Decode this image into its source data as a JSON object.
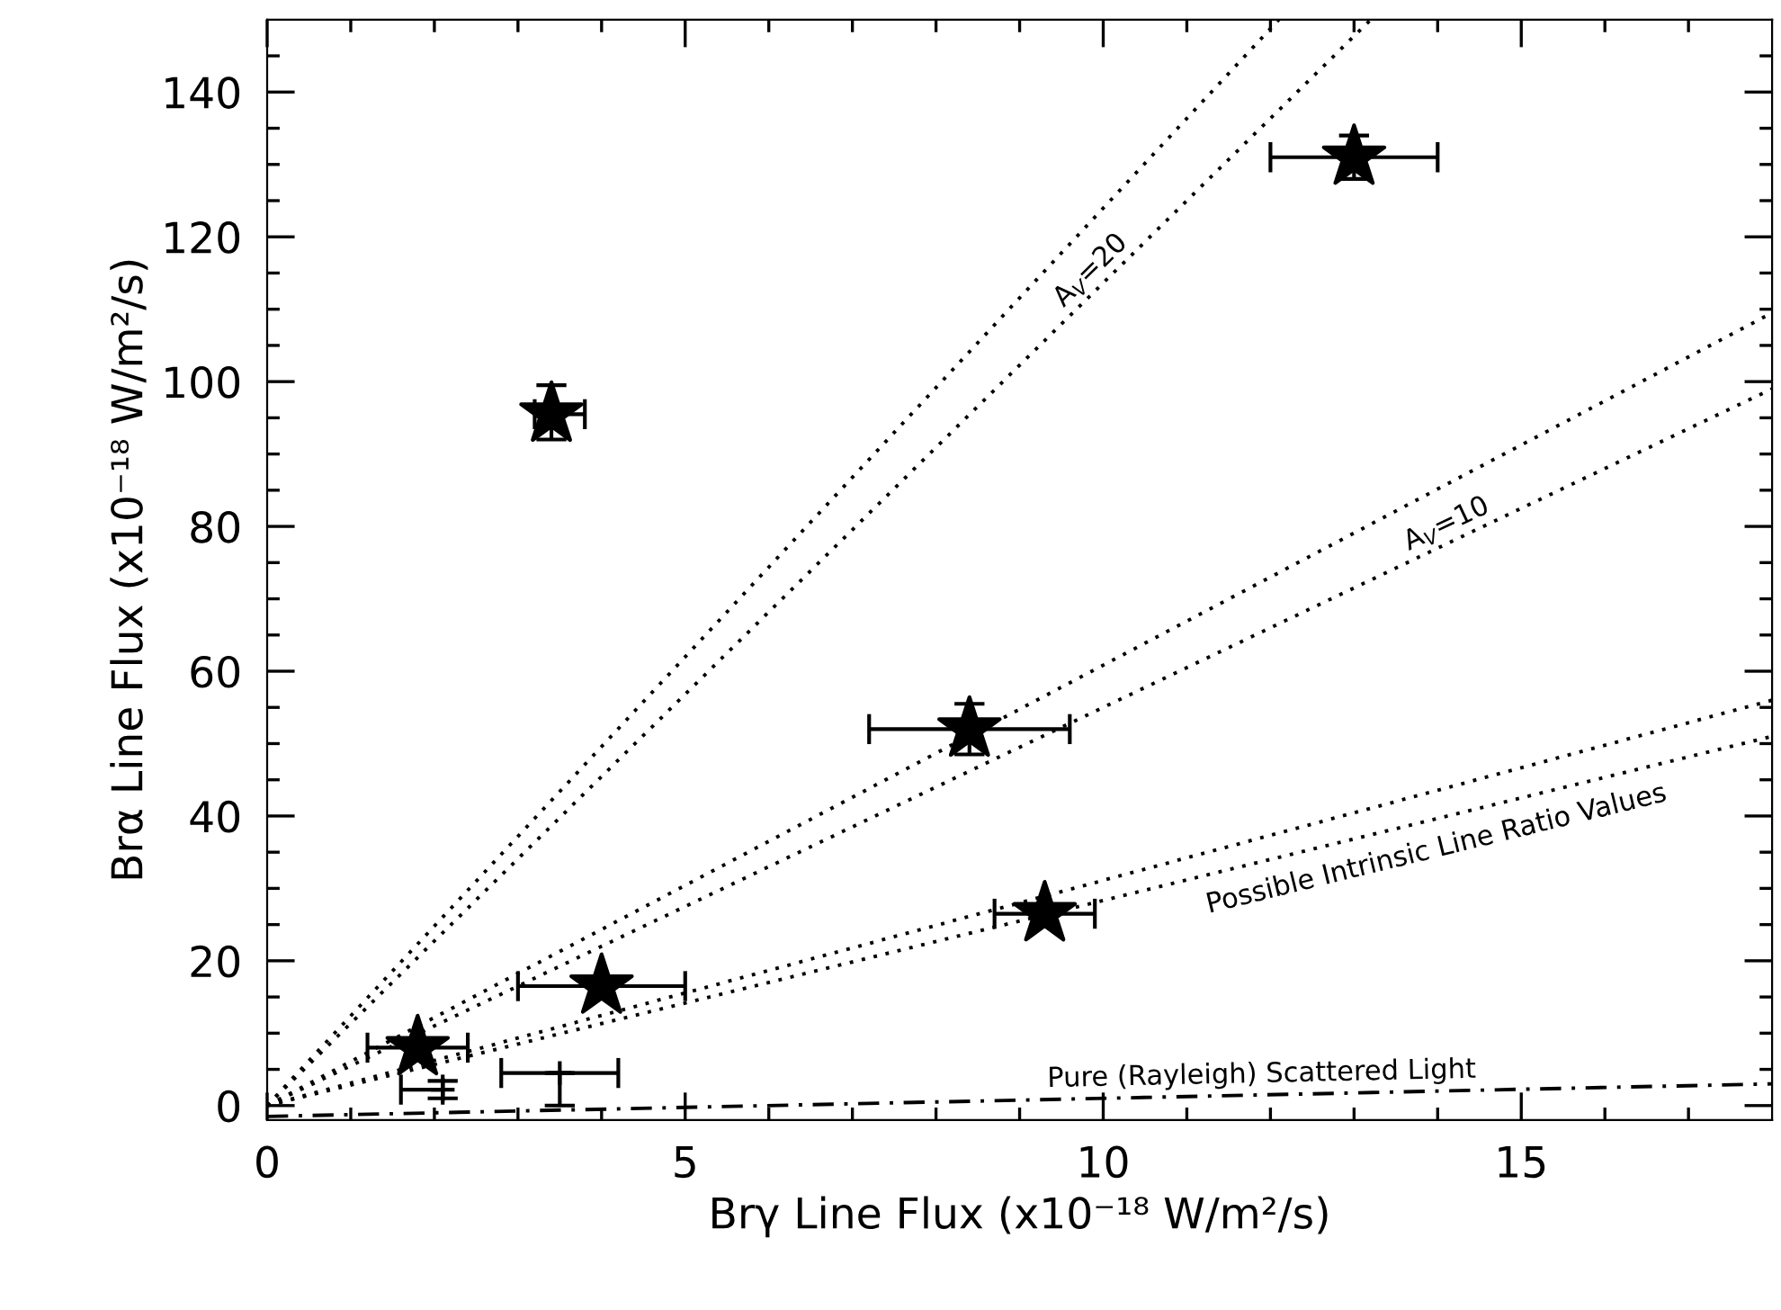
{
  "chart_data": {
    "type": "scatter",
    "xlabel": "Brγ Line Flux (x10⁻¹⁸ W/m²/s)",
    "ylabel": "Brα Line Flux (x10⁻¹⁸ W/m²/s)",
    "xlim": [
      0,
      18
    ],
    "ylim": [
      -2,
      150
    ],
    "xticks": [
      0,
      {
        "value": 1,
        "label": null
      },
      {
        "value": 2,
        "label": null
      },
      {
        "value": 3,
        "label": null
      },
      {
        "value": 4,
        "label": null
      },
      5,
      {
        "value": 6,
        "label": null
      },
      {
        "value": 7,
        "label": null
      },
      {
        "value": 8,
        "label": null
      },
      {
        "value": 9,
        "label": null
      },
      10,
      {
        "value": 11,
        "label": null
      },
      {
        "value": 12,
        "label": null
      },
      {
        "value": 13,
        "label": null
      },
      {
        "value": 14,
        "label": null
      },
      15,
      {
        "value": 16,
        "label": null
      },
      {
        "value": 17,
        "label": null
      }
    ],
    "yticks": [
      0,
      {
        "value": 5,
        "label": null
      },
      {
        "value": 10,
        "label": null
      },
      {
        "value": 15,
        "label": null
      },
      20,
      {
        "value": 25,
        "label": null
      },
      {
        "value": 30,
        "label": null
      },
      {
        "value": 35,
        "label": null
      },
      40,
      {
        "value": 45,
        "label": null
      },
      {
        "value": 50,
        "label": null
      },
      {
        "value": 55,
        "label": null
      },
      60,
      {
        "value": 65,
        "label": null
      },
      {
        "value": 70,
        "label": null
      },
      {
        "value": 75,
        "label": null
      },
      80,
      {
        "value": 85,
        "label": null
      },
      {
        "value": 90,
        "label": null
      },
      {
        "value": 95,
        "label": null
      },
      100,
      {
        "value": 105,
        "label": null
      },
      {
        "value": 110,
        "label": null
      },
      {
        "value": 115,
        "label": null
      },
      120,
      {
        "value": 125,
        "label": null
      },
      {
        "value": 130,
        "label": null
      },
      {
        "value": 135,
        "label": null
      },
      140,
      {
        "value": 145,
        "label": null
      }
    ],
    "grid": false,
    "legend": false,
    "series": [
      {
        "color": "#000000",
        "marker": "star",
        "x": [
          1.8,
          4.0,
          3.4,
          8.4,
          9.3,
          13.0
        ],
        "values": [
          8,
          16.5,
          95.5,
          52,
          26.5,
          131
        ],
        "xerrors": [
          [
            1.2,
            2.4
          ],
          [
            3.0,
            5.0
          ],
          [
            3.2,
            3.8
          ],
          [
            7.2,
            9.6
          ],
          [
            8.7,
            9.9
          ],
          [
            12.0,
            14.0
          ]
        ],
        "errors": [
          null,
          null,
          [
            92,
            99.5
          ],
          [
            48.5,
            55.5
          ],
          null,
          [
            128,
            134
          ]
        ]
      },
      {
        "color": "#000000",
        "marker": "cross",
        "x": [
          3.5,
          2.1
        ],
        "values": [
          4.5,
          2.2
        ],
        "xerrors": [
          [
            2.8,
            4.2
          ],
          [
            1.6,
            2.1
          ]
        ],
        "errors": [
          [
            0,
            4.5
          ],
          [
            1.0,
            3.4
          ]
        ]
      },
      {
        "type": "line",
        "color": "#000000",
        "line_style": "dotted",
        "x": [
          0,
          12.1
        ],
        "values": [
          0,
          150
        ]
      },
      {
        "type": "line",
        "color": "#000000",
        "line_style": "dotted",
        "x": [
          0,
          13.2
        ],
        "values": [
          0,
          150
        ]
      },
      {
        "type": "line",
        "color": "#000000",
        "line_style": "dotted",
        "x": [
          0,
          18
        ],
        "values": [
          0,
          109.5
        ]
      },
      {
        "type": "line",
        "color": "#000000",
        "line_style": "dotted",
        "x": [
          0,
          18
        ],
        "values": [
          0,
          99
        ]
      },
      {
        "type": "line",
        "color": "#000000",
        "line_style": "dotted",
        "x": [
          0,
          18
        ],
        "values": [
          0,
          56
        ]
      },
      {
        "type": "line",
        "color": "#000000",
        "line_style": "dotted",
        "x": [
          0,
          18
        ],
        "values": [
          0,
          51
        ]
      },
      {
        "type": "line",
        "color": "#000000",
        "line_style": "dashdot",
        "x": [
          0,
          18
        ],
        "values": [
          -1.5,
          3
        ]
      }
    ],
    "annotations": [
      {
        "text": "A$_{V}$=20",
        "x": 10.0,
        "y": 113.6
      },
      {
        "text": "A$_{V}$=10",
        "x": 14.2,
        "y": 78.1
      },
      {
        "text": "Possible Intrinsic Line Ratio Values",
        "x": 13.9,
        "y": 39.4
      },
      {
        "text": "Pure (Rayleigh) Scattered Light",
        "x": 11.9,
        "y": 1.5
      }
    ]
  }
}
